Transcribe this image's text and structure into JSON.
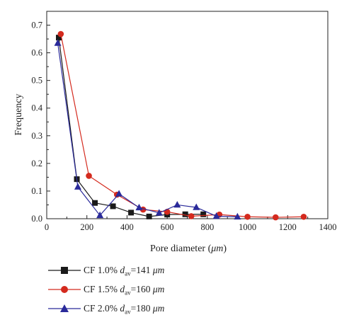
{
  "chart_data": {
    "type": "line",
    "xlabel_prefix": "Pore diameter (",
    "xlabel_unit": "μm",
    "xlabel_suffix": ")",
    "ylabel": "Frequency",
    "xlim": [
      0,
      1400
    ],
    "ylim": [
      0,
      0.75
    ],
    "xticks": [
      "0",
      "200",
      "400",
      "600",
      "800",
      "1000",
      "1200",
      "1400"
    ],
    "yticks": [
      "0.0",
      "0.1",
      "0.2",
      "0.3",
      "0.4",
      "0.5",
      "0.6",
      "0.7"
    ],
    "legend_position": "bottom-left, below plot",
    "series": [
      {
        "name": "CF 1.0%",
        "legend_d_value": "141",
        "legend_unit": "μm",
        "color": "#1a1a1a",
        "marker": "square",
        "x": [
          60,
          150,
          240,
          330,
          420,
          510,
          600,
          690,
          780
        ],
        "y": [
          0.655,
          0.143,
          0.057,
          0.045,
          0.022,
          0.008,
          0.015,
          0.016,
          0.016
        ]
      },
      {
        "name": "CF 1.5%",
        "legend_d_value": "160",
        "legend_unit": "μm",
        "color": "#d42a1e",
        "marker": "circle",
        "x": [
          70,
          210,
          350,
          480,
          600,
          720,
          860,
          1000,
          1140,
          1280
        ],
        "y": [
          0.668,
          0.155,
          0.087,
          0.033,
          0.025,
          0.009,
          0.015,
          0.007,
          0.005,
          0.007
        ]
      },
      {
        "name": "CF 2.0%",
        "legend_d_value": "180",
        "legend_unit": "μm",
        "color": "#2a2a9a",
        "marker": "triangle",
        "x": [
          55,
          155,
          265,
          360,
          460,
          560,
          650,
          745,
          845,
          950
        ],
        "y": [
          0.635,
          0.115,
          0.012,
          0.09,
          0.04,
          0.021,
          0.05,
          0.041,
          0.009,
          0.007
        ]
      }
    ]
  }
}
